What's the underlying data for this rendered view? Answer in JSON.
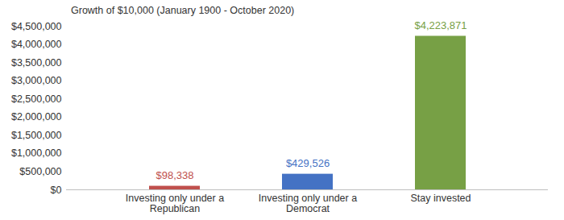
{
  "chart_data": {
    "type": "bar",
    "title": "Growth of $10,000 (January 1900 - October 2020)",
    "categories": [
      "Investing only under a Republican",
      "Investing only under a Democrat",
      "Stay invested"
    ],
    "values": [
      98338,
      429526,
      4223871
    ],
    "value_labels": [
      "$98,338",
      "$429,526",
      "$4,223,871"
    ],
    "colors": [
      "#c0504d",
      "#4472c4",
      "#77a045"
    ],
    "ylim": [
      0,
      4500000
    ],
    "yticks": [
      {
        "value": 0,
        "label": "$0"
      },
      {
        "value": 500000,
        "label": "$500,000"
      },
      {
        "value": 1000000,
        "label": "$1,000,000"
      },
      {
        "value": 1500000,
        "label": "$1,500,000"
      },
      {
        "value": 2000000,
        "label": "$2,000,000"
      },
      {
        "value": 2500000,
        "label": "$2,500,000"
      },
      {
        "value": 3000000,
        "label": "$3,000,000"
      },
      {
        "value": 3500000,
        "label": "$3,500,000"
      },
      {
        "value": 4000000,
        "label": "$4,000,000"
      },
      {
        "value": 4500000,
        "label": "$4,500,000"
      }
    ],
    "grid": false,
    "data_labels": true
  }
}
